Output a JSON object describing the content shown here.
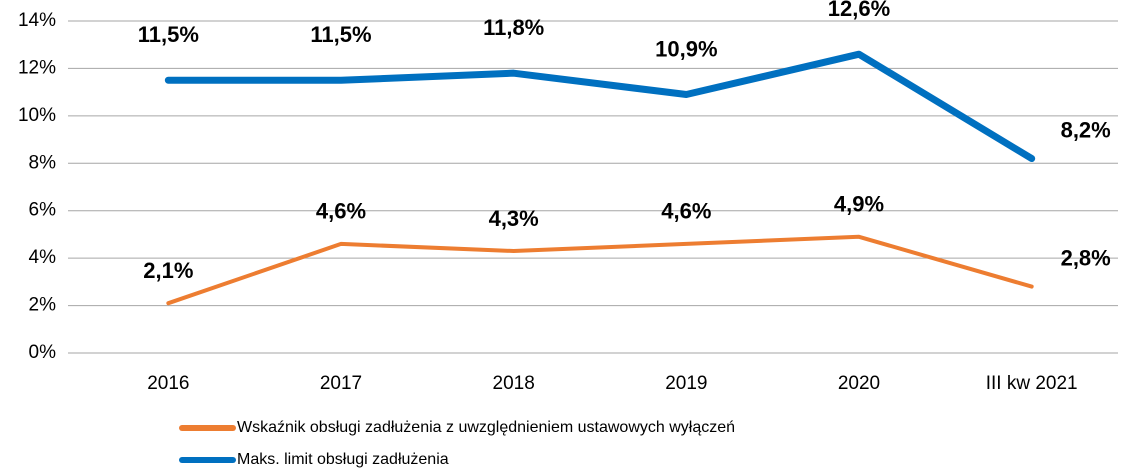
{
  "chart_data": {
    "type": "line",
    "categories": [
      "2016",
      "2017",
      "2018",
      "2019",
      "2020",
      "III kw 2021"
    ],
    "series": [
      {
        "name": "Wskaźnik obsługi zadłużenia  z uwzględnieniem ustawowych wyłączeń",
        "color": "#ed7d31",
        "values": [
          2.1,
          4.6,
          4.3,
          4.6,
          4.9,
          2.8
        ],
        "value_labels": [
          "2,1%",
          "4,6%",
          "4,3%",
          "4,6%",
          "4,9%",
          "2,8%"
        ]
      },
      {
        "name": "Maks. limit obsługi zadłużenia",
        "color": "#0070c0",
        "values": [
          11.5,
          11.5,
          11.8,
          10.9,
          12.6,
          8.2
        ],
        "value_labels": [
          "11,5%",
          "11,5%",
          "11,8%",
          "10,9%",
          "12,6%",
          "8,2%"
        ]
      }
    ],
    "ylim": [
      0,
      14
    ],
    "yticks": [
      {
        "value": 0,
        "label": "0%"
      },
      {
        "value": 2,
        "label": "2%"
      },
      {
        "value": 4,
        "label": "4%"
      },
      {
        "value": 6,
        "label": "6%"
      },
      {
        "value": 8,
        "label": "8%"
      },
      {
        "value": 10,
        "label": "10%"
      },
      {
        "value": 12,
        "label": "12%"
      },
      {
        "value": 14,
        "label": "14%"
      }
    ],
    "grid": true
  }
}
